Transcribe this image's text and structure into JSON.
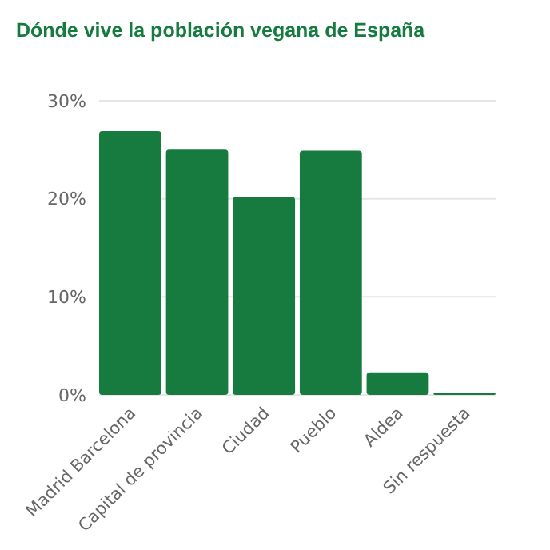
{
  "chart_data": {
    "type": "bar",
    "title": "Dónde vive la población vegana de España",
    "categories": [
      "Madrid Barcelona",
      "Capital de provincia",
      "Ciudad",
      "Pueblo",
      "Aldea",
      "Sin respuesta"
    ],
    "values": [
      26.9,
      25,
      20.2,
      24.9,
      2.3,
      0.2
    ],
    "color": "#177b40",
    "ylim": [
      0,
      30
    ],
    "yticks": [
      {
        "value": 0,
        "label": "0%"
      },
      {
        "value": 10,
        "label": "10%"
      },
      {
        "value": 20,
        "label": "20%"
      },
      {
        "value": 30,
        "label": "30%"
      }
    ],
    "grid": "y"
  }
}
